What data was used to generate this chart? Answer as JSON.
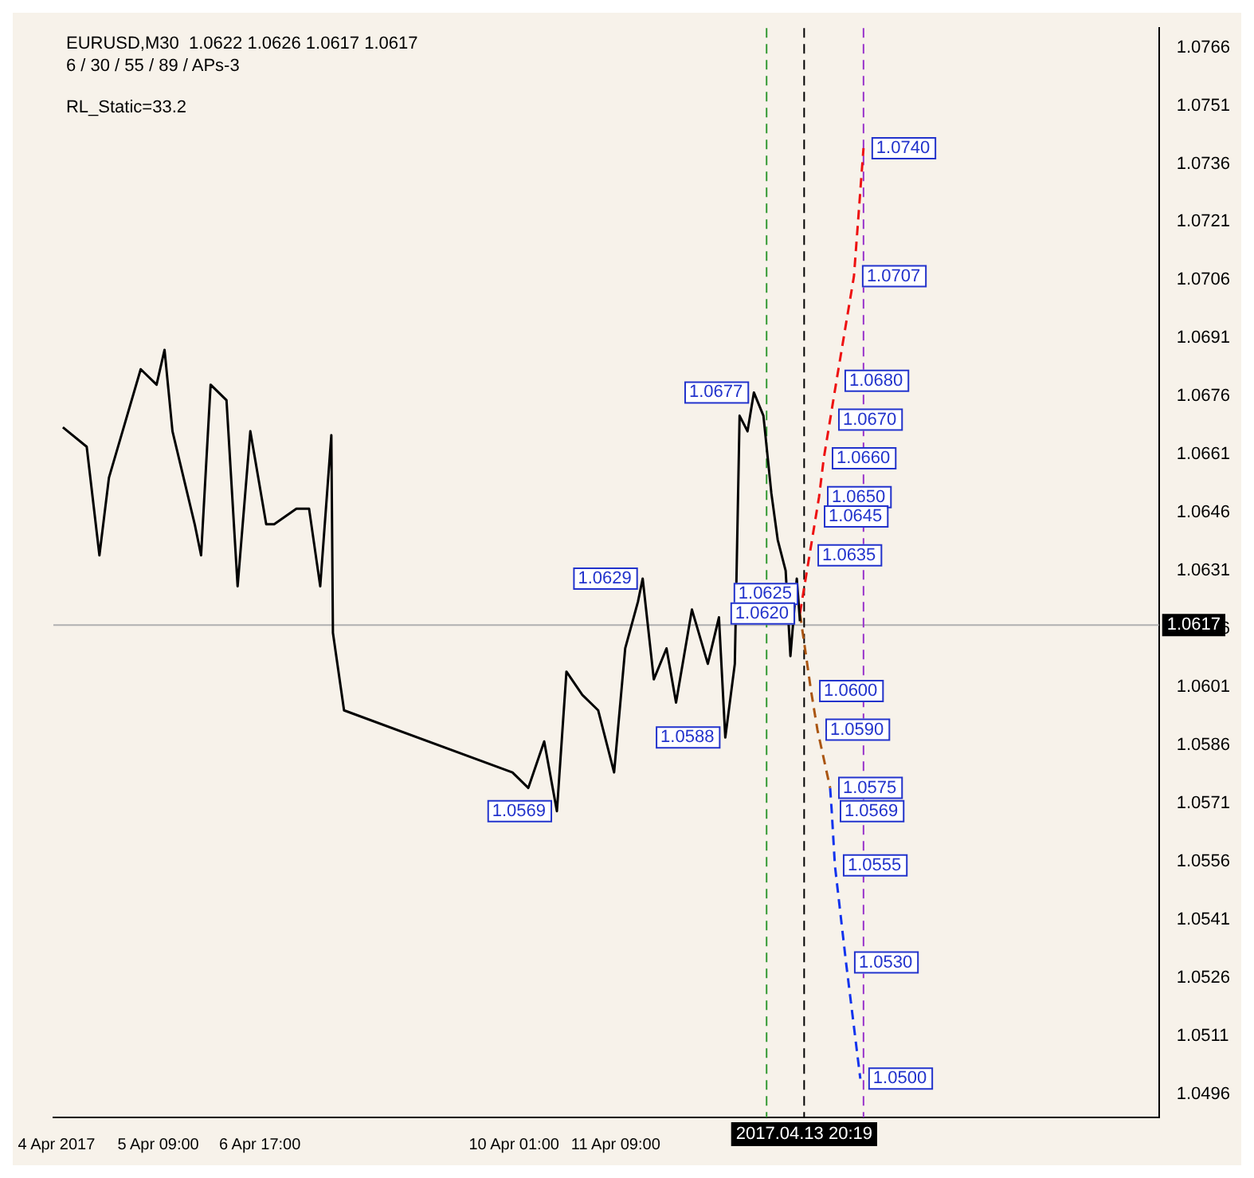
{
  "chart_data": {
    "type": "line",
    "marker": "none",
    "legend": false,
    "grid": false,
    "annotations": [
      "EURUSD,M30  1.0622 1.0626 1.0617 1.0617",
      "6 / 30 / 55 / 89 / APs-3",
      "RL_Static=33.2",
      {
        "text": "1.0569",
        "x": "2017-04-10T14:30",
        "y": 1.0569
      },
      {
        "text": "1.0588",
        "x": "2017-04-12T19:30",
        "y": 1.0588
      },
      {
        "text": "1.0629",
        "x": "2017-04-11T17:30",
        "y": 1.0629
      },
      {
        "text": "1.0677",
        "x": "2017-04-13T04:30",
        "y": 1.0677
      },
      {
        "text": "1.0740",
        "x": "2017-04-14T15:00",
        "y": 1.074
      },
      {
        "text": "1.0707",
        "x": "2017-04-14T12:00",
        "y": 1.0707
      },
      {
        "text": "1.0680",
        "x": "2017-04-14T06:30",
        "y": 1.068
      },
      {
        "text": "1.0670",
        "x": "2017-04-14T04:30",
        "y": 1.067
      },
      {
        "text": "1.0660",
        "x": "2017-04-14T02:30",
        "y": 1.066
      },
      {
        "text": "1.0650",
        "x": "2017-04-14T01:00",
        "y": 1.065
      },
      {
        "text": "1.0645",
        "x": "2017-04-14T00:00",
        "y": 1.0645
      },
      {
        "text": "1.0635",
        "x": "2017-04-13T22:00",
        "y": 1.0635
      },
      {
        "text": "1.0625",
        "x": "2017-04-13T20:00",
        "y": 1.0625
      },
      {
        "text": "1.0620",
        "x": "2017-04-13T19:00",
        "y": 1.062
      },
      {
        "text": "1.0600",
        "x": "2017-04-13T22:30",
        "y": 1.06
      },
      {
        "text": "1.0590",
        "x": "2017-04-14T00:30",
        "y": 1.059
      },
      {
        "text": "1.0575",
        "x": "2017-04-14T04:30",
        "y": 1.0575
      },
      {
        "text": "1.0569",
        "x": "2017-04-14T05:00",
        "y": 1.0569
      },
      {
        "text": "1.0555",
        "x": "2017-04-14T06:00",
        "y": 1.0555
      },
      {
        "text": "1.0530",
        "x": "2017-04-14T09:30",
        "y": 1.053
      },
      {
        "text": "1.0500",
        "x": "2017-04-14T14:00",
        "y": 1.05
      }
    ],
    "xlim": [
      "2017-04-04T00:00",
      "2017-04-18T12:00"
    ],
    "xticks": [
      {
        "value": "2017-04-04T01:00",
        "label": "4 Apr 2017"
      },
      {
        "value": "2017-04-05T09:00",
        "label": "5 Apr 09:00"
      },
      {
        "value": "2017-04-06T17:00",
        "label": "6 Apr 17:00"
      },
      {
        "value": "2017-04-10T01:00",
        "label": "10 Apr 01:00"
      },
      {
        "value": "2017-04-11T09:00",
        "label": "11 Apr 09:00"
      }
    ],
    "ylim": [
      1.049,
      1.0771
    ],
    "yticks": [
      1.0496,
      1.0511,
      1.0526,
      1.0541,
      1.0556,
      1.0571,
      1.0586,
      1.0601,
      1.0616,
      1.0631,
      1.0646,
      1.0661,
      1.0676,
      1.0691,
      1.0706,
      1.0721,
      1.0736,
      1.0751,
      1.0766
    ],
    "ref_lines": [
      {
        "axis": "y",
        "value": 1.0617,
        "label": "1.0617",
        "color": "#b0b0b0"
      },
      {
        "axis": "x",
        "value": "2017-04-13T20:19",
        "label": "2017.04.13 20:19",
        "color": "#000000",
        "line_style": "dashed"
      },
      {
        "axis": "x",
        "value": "2017-04-13T08:30",
        "color": "#339933",
        "line_style": "dashed"
      },
      {
        "axis": "x",
        "value": "2017-04-14T15:00",
        "color": "#9933cc",
        "line_style": "dashed"
      }
    ],
    "series": [
      {
        "color": "#000000",
        "line_style": "solid",
        "x": [
          "2017-04-04T03:00",
          "2017-04-04T10:30",
          "2017-04-04T14:30",
          "2017-04-04T17:30",
          "2017-04-04T22:30",
          "2017-04-05T03:30",
          "2017-04-05T08:30",
          "2017-04-05T11:00",
          "2017-04-05T13:30",
          "2017-04-05T20:30",
          "2017-04-05T22:30",
          "2017-04-06T01:30",
          "2017-04-06T06:30",
          "2017-04-06T10:00",
          "2017-04-06T14:00",
          "2017-04-06T19:00",
          "2017-04-06T21:30",
          "2017-04-07T04:30",
          "2017-04-07T08:30",
          "2017-04-07T12:00",
          "2017-04-07T15:30",
          "2017-04-07T16:00",
          "2017-04-07T19:30",
          "2017-04-10T00:30",
          "2017-04-10T05:30",
          "2017-04-10T10:30",
          "2017-04-10T14:30",
          "2017-04-10T17:30",
          "2017-04-10T22:30",
          "2017-04-11T03:30",
          "2017-04-11T08:30",
          "2017-04-11T12:00",
          "2017-04-11T16:00",
          "2017-04-11T17:30",
          "2017-04-11T21:00",
          "2017-04-12T01:00",
          "2017-04-12T04:00",
          "2017-04-12T09:00",
          "2017-04-12T14:00",
          "2017-04-12T17:30",
          "2017-04-12T19:30",
          "2017-04-12T22:30",
          "2017-04-13T00:00",
          "2017-04-13T02:30",
          "2017-04-13T04:30",
          "2017-04-13T07:30",
          "2017-04-13T10:00",
          "2017-04-13T12:00",
          "2017-04-13T14:30",
          "2017-04-13T16:00",
          "2017-04-13T18:00",
          "2017-04-13T19:00"
        ],
        "values": [
          1.0668,
          1.0663,
          1.0635,
          1.0655,
          1.0669,
          1.0683,
          1.0679,
          1.0688,
          1.0667,
          1.0643,
          1.0635,
          1.0679,
          1.0675,
          1.0627,
          1.0667,
          1.0643,
          1.0643,
          1.0647,
          1.0647,
          1.0627,
          1.0666,
          1.0615,
          1.0595,
          1.0579,
          1.0575,
          1.0587,
          1.0569,
          1.0605,
          1.0599,
          1.0595,
          1.0579,
          1.0611,
          1.0623,
          1.0629,
          1.0603,
          1.0611,
          1.0597,
          1.0621,
          1.0607,
          1.0619,
          1.0588,
          1.0607,
          1.0671,
          1.0667,
          1.0677,
          1.0671,
          1.0651,
          1.0639,
          1.0631,
          1.0609,
          1.0629,
          1.0618
        ]
      },
      {
        "color": "#ee1111",
        "line_style": "dashed",
        "x": [
          "2017-04-13T19:00",
          "2017-04-13T20:00",
          "2017-04-13T22:00",
          "2017-04-14T00:00",
          "2017-04-14T01:00",
          "2017-04-14T02:30",
          "2017-04-14T04:30",
          "2017-04-14T06:30",
          "2017-04-14T12:00",
          "2017-04-14T15:00"
        ],
        "values": [
          1.062,
          1.0625,
          1.0635,
          1.0645,
          1.065,
          1.066,
          1.067,
          1.068,
          1.0707,
          1.074
        ]
      },
      {
        "color": "#aa5511",
        "line_style": "dashed",
        "x": [
          "2017-04-13T19:00",
          "2017-04-13T22:30",
          "2017-04-14T00:30",
          "2017-04-14T04:30"
        ],
        "values": [
          1.062,
          1.06,
          1.059,
          1.0575
        ]
      },
      {
        "color": "#1133ee",
        "line_style": "dashed",
        "x": [
          "2017-04-14T04:30",
          "2017-04-14T05:00",
          "2017-04-14T06:00",
          "2017-04-14T09:30",
          "2017-04-14T14:00"
        ],
        "values": [
          1.0575,
          1.0569,
          1.0555,
          1.053,
          1.05
        ]
      }
    ]
  }
}
